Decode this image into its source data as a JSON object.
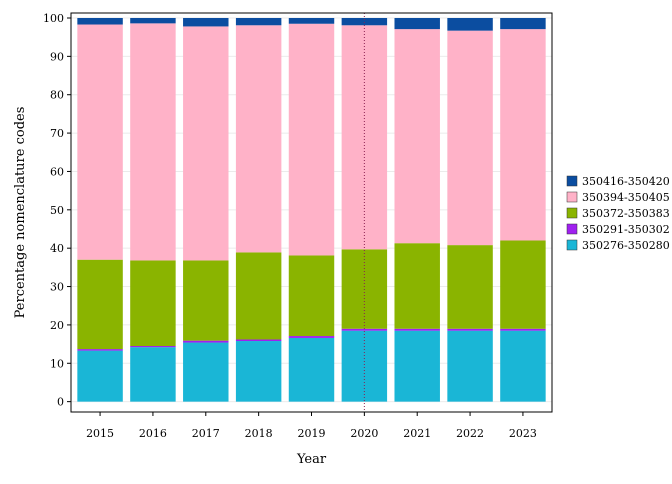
{
  "chart_data": {
    "type": "bar",
    "stacked": true,
    "categories": [
      "2015",
      "2016",
      "2017",
      "2018",
      "2019",
      "2020",
      "2021",
      "2022",
      "2023"
    ],
    "series": [
      {
        "name": "350276-350280",
        "color": "#1AB6D6",
        "values": [
          13.3,
          14.2,
          15.4,
          15.8,
          16.6,
          18.5,
          18.5,
          18.5,
          18.5
        ]
      },
      {
        "name": "350291-350302",
        "color": "#A020F0",
        "values": [
          0.4,
          0.3,
          0.5,
          0.4,
          0.5,
          0.5,
          0.5,
          0.5,
          0.5
        ]
      },
      {
        "name": "350372-350383",
        "color": "#8AB400",
        "values": [
          23.3,
          22.3,
          20.9,
          22.7,
          21.0,
          20.7,
          22.3,
          21.8,
          23.0
        ]
      },
      {
        "name": "350394-350405",
        "color": "#FFB2C8",
        "values": [
          61.3,
          61.8,
          61.0,
          59.2,
          60.4,
          58.4,
          55.8,
          55.9,
          55.1
        ]
      },
      {
        "name": "350416-350420",
        "color": "#0B4DA0",
        "values": [
          1.7,
          1.4,
          2.2,
          1.9,
          1.5,
          1.9,
          2.9,
          3.3,
          2.9
        ]
      }
    ],
    "xlabel": "Year",
    "ylabel": "Percentage nomenclature codes",
    "ylim": [
      0,
      100
    ],
    "yticks": [
      0,
      10,
      20,
      30,
      40,
      50,
      60,
      70,
      80,
      90,
      100
    ],
    "grid": true,
    "legend_position": "right",
    "reference_line": {
      "x_category": "2020",
      "color": "#8B2252",
      "style": "dotted"
    }
  }
}
